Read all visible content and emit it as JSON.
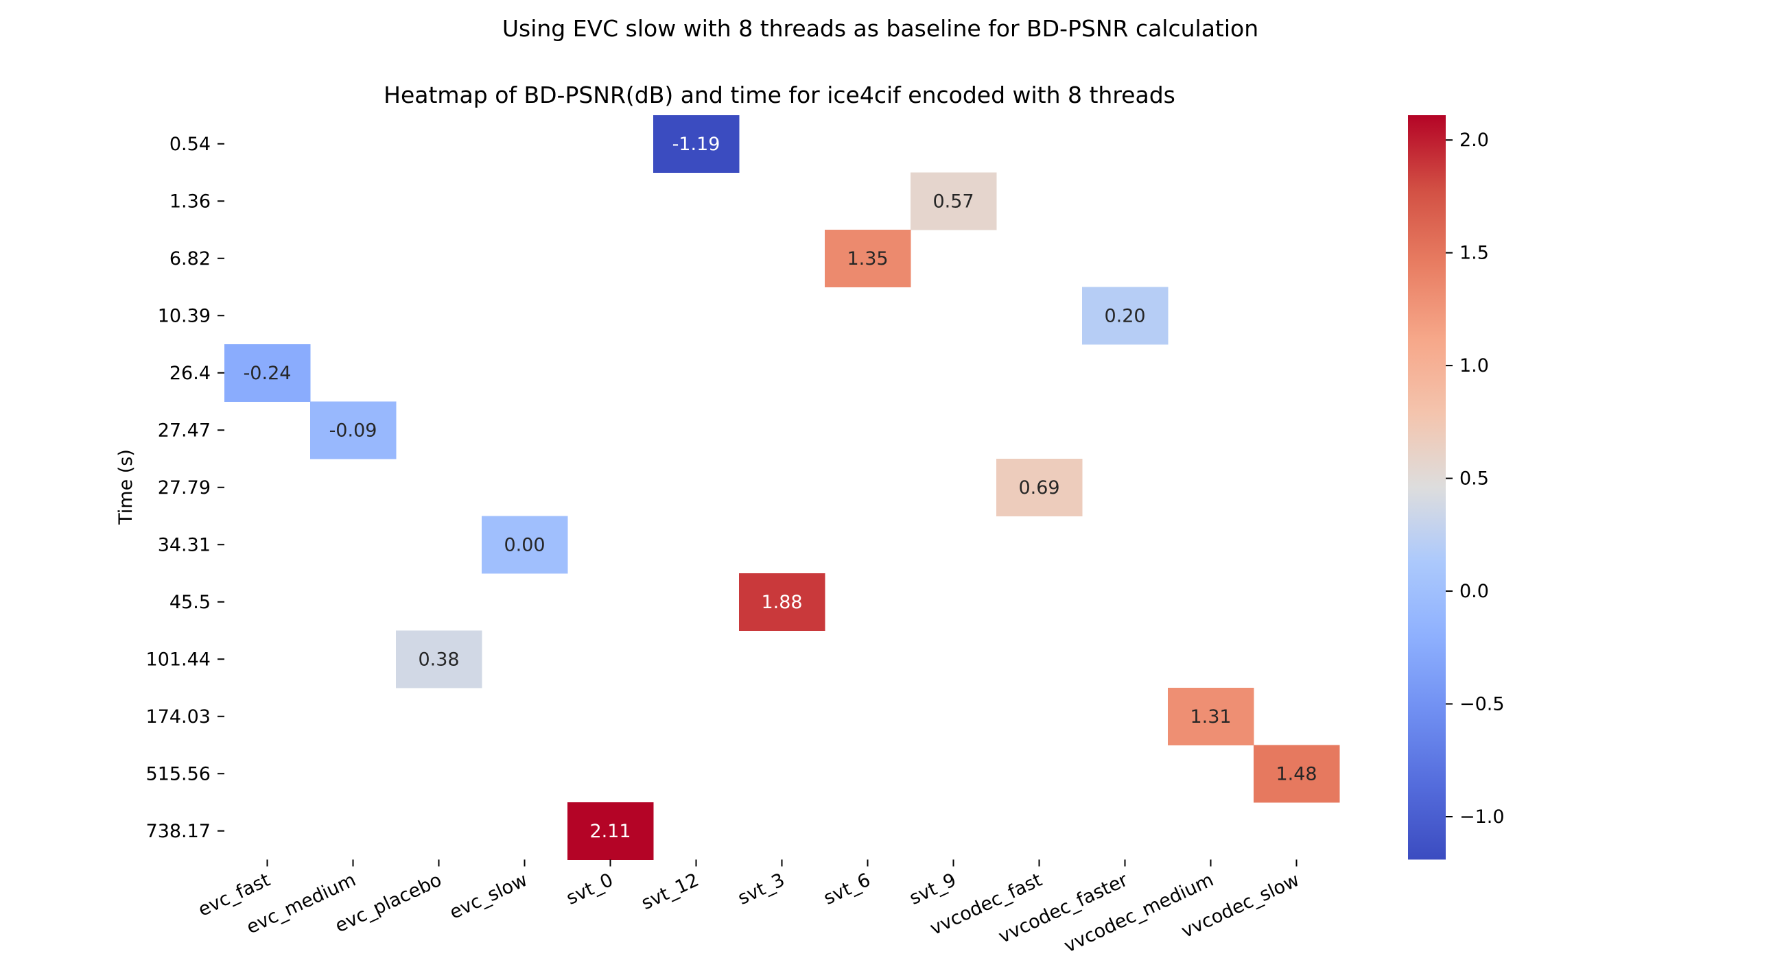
{
  "chart_data": {
    "type": "heatmap",
    "suptitle": "Using EVC slow with 8 threads as baseline for BD-PSNR calculation",
    "title": "Heatmap of BD-PSNR(dB) and time for ice4cif encoded with 8 threads",
    "xlabel": "",
    "ylabel": "Time (s)",
    "x_categories": [
      "evc_fast",
      "evc_medium",
      "evc_placebo",
      "evc_slow",
      "svt_0",
      "svt_12",
      "svt_3",
      "svt_6",
      "svt_9",
      "vvcodec_fast",
      "vvcodec_faster",
      "vvcodec_medium",
      "vvcodec_slow"
    ],
    "y_categories": [
      "0.54",
      "1.36",
      "6.82",
      "10.39",
      "26.4",
      "27.47",
      "27.79",
      "34.31",
      "45.5",
      "101.44",
      "174.03",
      "515.56",
      "738.17"
    ],
    "cells": [
      {
        "x": "svt_12",
        "y": "0.54",
        "value": -1.19,
        "label": "-1.19"
      },
      {
        "x": "svt_9",
        "y": "1.36",
        "value": 0.57,
        "label": "0.57"
      },
      {
        "x": "svt_6",
        "y": "6.82",
        "value": 1.35,
        "label": "1.35"
      },
      {
        "x": "vvcodec_faster",
        "y": "10.39",
        "value": 0.2,
        "label": "0.20"
      },
      {
        "x": "evc_fast",
        "y": "26.4",
        "value": -0.24,
        "label": "-0.24"
      },
      {
        "x": "evc_medium",
        "y": "27.47",
        "value": -0.09,
        "label": "-0.09"
      },
      {
        "x": "vvcodec_fast",
        "y": "27.79",
        "value": 0.69,
        "label": "0.69"
      },
      {
        "x": "evc_slow",
        "y": "34.31",
        "value": 0.0,
        "label": "0.00"
      },
      {
        "x": "svt_3",
        "y": "45.5",
        "value": 1.88,
        "label": "1.88"
      },
      {
        "x": "evc_placebo",
        "y": "101.44",
        "value": 0.38,
        "label": "0.38"
      },
      {
        "x": "vvcodec_medium",
        "y": "174.03",
        "value": 1.31,
        "label": "1.31"
      },
      {
        "x": "vvcodec_slow",
        "y": "515.56",
        "value": 1.48,
        "label": "1.48"
      },
      {
        "x": "svt_0",
        "y": "738.17",
        "value": 2.11,
        "label": "2.11"
      }
    ],
    "colormap": "coolwarm",
    "vmin": -1.19,
    "vmax": 2.11,
    "colorbar_ticks": [
      -1.0,
      -0.5,
      0.0,
      0.5,
      1.0,
      1.5,
      2.0
    ],
    "colorbar_tick_labels": [
      "−1.0",
      "−0.5",
      "0.0",
      "0.5",
      "1.0",
      "1.5",
      "2.0"
    ],
    "colorbar_position": "right",
    "grid": false
  }
}
